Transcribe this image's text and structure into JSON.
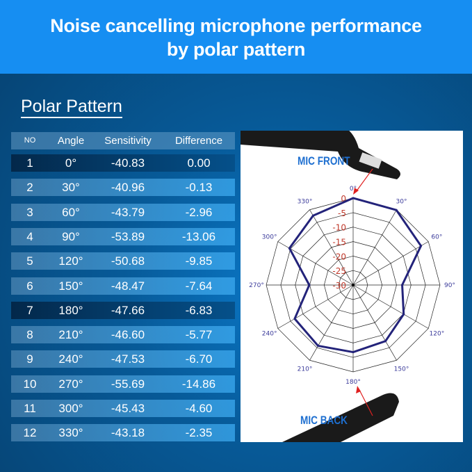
{
  "banner": {
    "line1": "Noise cancelling microphone performance",
    "line2": "by polar pattern"
  },
  "section_title": "Polar Pattern",
  "table": {
    "headers": [
      "NO",
      "Angle",
      "Sensitivity",
      "Difference"
    ],
    "rows": [
      [
        "1",
        "0°",
        "-40.83",
        "0.00"
      ],
      [
        "2",
        "30°",
        "-40.96",
        "-0.13"
      ],
      [
        "3",
        "60°",
        "-43.79",
        "-2.96"
      ],
      [
        "4",
        "90°",
        "-53.89",
        "-13.06"
      ],
      [
        "5",
        "120°",
        "-50.68",
        "-9.85"
      ],
      [
        "6",
        "150°",
        "-48.47",
        "-7.64"
      ],
      [
        "7",
        "180°",
        "-47.66",
        "-6.83"
      ],
      [
        "8",
        "210°",
        "-46.60",
        "-5.77"
      ],
      [
        "9",
        "240°",
        "-47.53",
        "-6.70"
      ],
      [
        "10",
        "270°",
        "-55.69",
        "-14.86"
      ],
      [
        "11",
        "300°",
        "-45.43",
        "-4.60"
      ],
      [
        "12",
        "330°",
        "-43.18",
        "-2.35"
      ]
    ],
    "dark_rows": [
      1,
      7
    ]
  },
  "chart_data": {
    "type": "polar",
    "angles": [
      0,
      30,
      60,
      90,
      120,
      150,
      180,
      210,
      240,
      270,
      300,
      330
    ],
    "angle_labels": [
      "0°",
      "30°",
      "60°",
      "90°",
      "120°",
      "150°",
      "180°",
      "210°",
      "240°",
      "270°",
      "300°",
      "330°"
    ],
    "radial_ticks": [
      "0",
      "-5",
      "-10",
      "-15",
      "-20",
      "-25",
      "-30"
    ],
    "rlim": [
      -30,
      0
    ],
    "values": [
      0.0,
      -0.13,
      -2.96,
      -13.06,
      -9.85,
      -7.64,
      -6.83,
      -5.77,
      -6.7,
      -14.86,
      -4.6,
      -2.35
    ],
    "series_color": "#23237a",
    "radial_tick_color": "#c0392b",
    "angle_label_color": "#3a3a9a",
    "annotations": {
      "front": "MIC FRONT",
      "back": "MIC BACK"
    }
  }
}
